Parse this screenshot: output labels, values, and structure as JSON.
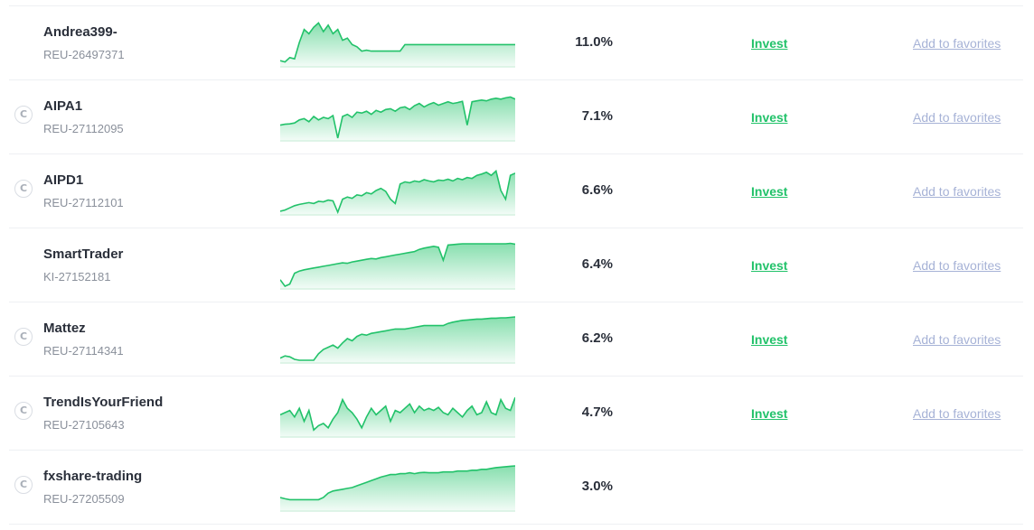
{
  "columns": {
    "invest_label": "Invest",
    "favorites_label": "Add to favorites"
  },
  "accent_color": "#22c26a",
  "traders": [
    {
      "name": "Andrea399-",
      "account": "REU-26497371",
      "return": "11.0%",
      "badge": false,
      "invest": true,
      "favorite": true,
      "curve": [
        0.08,
        0.05,
        0.15,
        0.12,
        0.5,
        0.8,
        0.7,
        0.85,
        0.95,
        0.75,
        0.9,
        0.7,
        0.8,
        0.55,
        0.6,
        0.45,
        0.4,
        0.3,
        0.32,
        0.3,
        0.3,
        0.3,
        0.3,
        0.3,
        0.3,
        0.3,
        0.45,
        0.45,
        0.45,
        0.45,
        0.45,
        0.45,
        0.45,
        0.45,
        0.45,
        0.45,
        0.45,
        0.45,
        0.45,
        0.45,
        0.45,
        0.45,
        0.45,
        0.45,
        0.45,
        0.45,
        0.45,
        0.45,
        0.45,
        0.45
      ]
    },
    {
      "name": "AIPA1",
      "account": "REU-27112095",
      "return": "7.1%",
      "badge": true,
      "invest": true,
      "favorite": true,
      "curve": [
        0.3,
        0.32,
        0.33,
        0.35,
        0.42,
        0.45,
        0.38,
        0.5,
        0.42,
        0.48,
        0.45,
        0.52,
        0.0,
        0.5,
        0.55,
        0.48,
        0.6,
        0.58,
        0.62,
        0.55,
        0.64,
        0.6,
        0.66,
        0.68,
        0.62,
        0.7,
        0.72,
        0.66,
        0.75,
        0.8,
        0.72,
        0.78,
        0.82,
        0.76,
        0.8,
        0.84,
        0.8,
        0.82,
        0.85,
        0.3,
        0.84,
        0.86,
        0.88,
        0.86,
        0.9,
        0.92,
        0.9,
        0.93,
        0.95,
        0.9
      ]
    },
    {
      "name": "AIPD1",
      "account": "REU-27112101",
      "return": "6.6%",
      "badge": true,
      "invest": true,
      "favorite": true,
      "curve": [
        0.02,
        0.05,
        0.1,
        0.15,
        0.18,
        0.2,
        0.22,
        0.2,
        0.25,
        0.24,
        0.28,
        0.26,
        0.0,
        0.3,
        0.35,
        0.32,
        0.4,
        0.38,
        0.45,
        0.42,
        0.5,
        0.55,
        0.48,
        0.3,
        0.2,
        0.65,
        0.7,
        0.68,
        0.72,
        0.7,
        0.75,
        0.72,
        0.7,
        0.74,
        0.73,
        0.76,
        0.72,
        0.78,
        0.75,
        0.8,
        0.78,
        0.85,
        0.88,
        0.92,
        0.85,
        0.95,
        0.5,
        0.3,
        0.85,
        0.9
      ]
    },
    {
      "name": "SmartTrader",
      "account": "KI-27152181",
      "return": "6.4%",
      "badge": false,
      "invest": true,
      "favorite": true,
      "curve": [
        0.15,
        0.0,
        0.05,
        0.3,
        0.35,
        0.38,
        0.4,
        0.42,
        0.44,
        0.46,
        0.48,
        0.5,
        0.52,
        0.54,
        0.53,
        0.56,
        0.58,
        0.6,
        0.62,
        0.64,
        0.63,
        0.66,
        0.68,
        0.7,
        0.72,
        0.74,
        0.76,
        0.78,
        0.8,
        0.85,
        0.88,
        0.9,
        0.92,
        0.9,
        0.6,
        0.95,
        0.96,
        0.97,
        0.98,
        0.98,
        0.98,
        0.98,
        0.98,
        0.98,
        0.98,
        0.98,
        0.98,
        0.98,
        0.99,
        0.97
      ]
    },
    {
      "name": "Mattez",
      "account": "REU-27114341",
      "return": "6.2%",
      "badge": true,
      "invest": true,
      "favorite": true,
      "curve": [
        0.05,
        0.1,
        0.08,
        0.02,
        0.0,
        0.0,
        0.0,
        0.0,
        0.15,
        0.25,
        0.3,
        0.35,
        0.28,
        0.4,
        0.5,
        0.45,
        0.55,
        0.6,
        0.58,
        0.62,
        0.64,
        0.66,
        0.68,
        0.7,
        0.72,
        0.72,
        0.72,
        0.74,
        0.76,
        0.78,
        0.8,
        0.8,
        0.8,
        0.8,
        0.8,
        0.85,
        0.88,
        0.9,
        0.92,
        0.93,
        0.94,
        0.95,
        0.95,
        0.96,
        0.97,
        0.97,
        0.98,
        0.98,
        0.99,
        1.0
      ]
    },
    {
      "name": "TrendIsYourFriend",
      "account": "REU-27105643",
      "return": "4.7%",
      "badge": true,
      "invest": true,
      "favorite": true,
      "curve": [
        0.45,
        0.5,
        0.55,
        0.4,
        0.6,
        0.3,
        0.55,
        0.1,
        0.2,
        0.25,
        0.15,
        0.35,
        0.5,
        0.8,
        0.6,
        0.5,
        0.35,
        0.15,
        0.4,
        0.6,
        0.45,
        0.55,
        0.65,
        0.3,
        0.55,
        0.5,
        0.6,
        0.7,
        0.5,
        0.65,
        0.55,
        0.6,
        0.55,
        0.62,
        0.5,
        0.45,
        0.6,
        0.5,
        0.4,
        0.55,
        0.65,
        0.45,
        0.5,
        0.75,
        0.5,
        0.45,
        0.8,
        0.6,
        0.55,
        0.85
      ]
    },
    {
      "name": "fxshare-trading",
      "account": "REU-27205509",
      "return": "3.0%",
      "badge": true,
      "invest": false,
      "favorite": false,
      "curve": [
        0.25,
        0.22,
        0.2,
        0.2,
        0.2,
        0.2,
        0.2,
        0.2,
        0.2,
        0.25,
        0.35,
        0.4,
        0.42,
        0.44,
        0.46,
        0.48,
        0.52,
        0.56,
        0.6,
        0.64,
        0.68,
        0.72,
        0.75,
        0.78,
        0.78,
        0.8,
        0.8,
        0.82,
        0.8,
        0.82,
        0.83,
        0.82,
        0.82,
        0.82,
        0.84,
        0.84,
        0.84,
        0.86,
        0.86,
        0.86,
        0.88,
        0.88,
        0.9,
        0.9,
        0.92,
        0.94,
        0.95,
        0.96,
        0.97,
        0.98
      ]
    }
  ]
}
